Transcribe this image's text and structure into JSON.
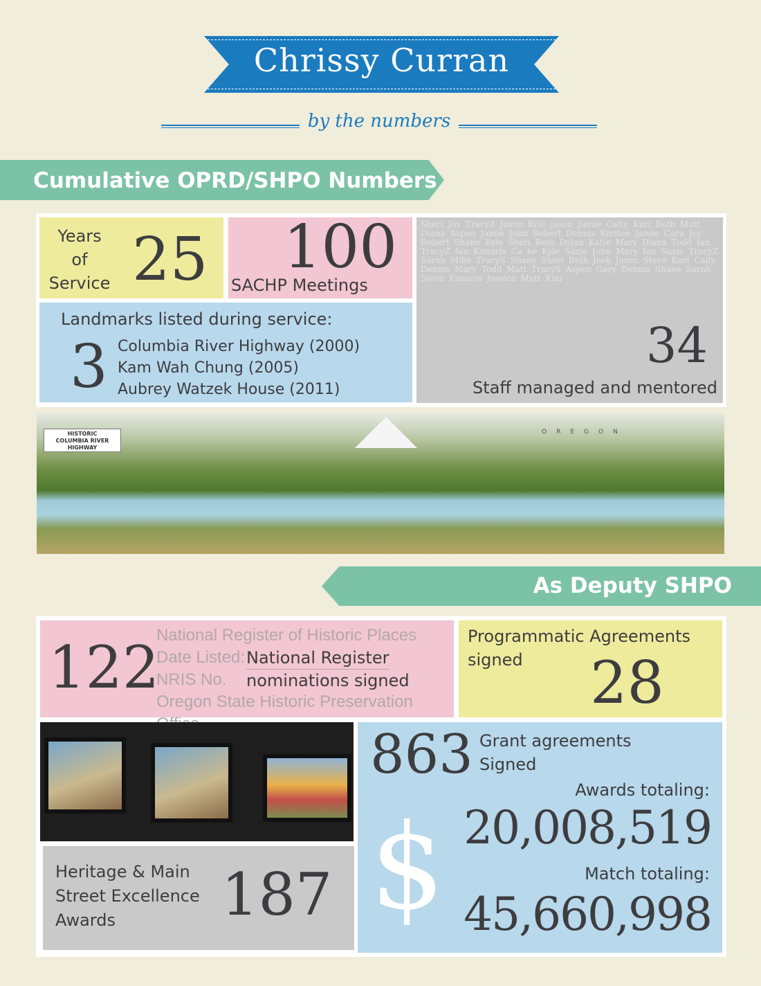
{
  "header": {
    "title": "Chrissy Curran",
    "subtitle": "by the numbers"
  },
  "section1": {
    "heading": "Cumulative OPRD/SHPO Numbers",
    "years": {
      "label_lines": [
        "Years",
        "of",
        "Service"
      ],
      "value": "25"
    },
    "sachp": {
      "value": "100",
      "label": "SACHP Meetings"
    },
    "landmarks": {
      "heading": "Landmarks listed during service:",
      "value": "3",
      "items": [
        "Columbia River Highway (2000)",
        "Kam Wah Chung (2005)",
        "Aubrey Watzek House (2011)"
      ]
    },
    "staff": {
      "value": "34",
      "label": "Staff managed and mentored",
      "names": "Sheri Joy TracyZ Jason Kyle Jason Jamie Caity Kuri Beth Matt Diana Aspen Jamie John Robert Dennis Kirsten Jamie Cara Joy Robert Shane Kyle Sheri Beth Dylan Katie Mary Diana Todd Ian TracyZ Ian Kimarie Ca ke Kyle Suzie John Mary Ian Suzie TracyZ Sarah Mike TracyS Shane Sheri Beth Josh Jason Steve Kuri Caity Dennis Mary Todd Matt TracyS Aspen Gary Dennis Shane Sarah Steve Kimarie Jessica Matt Kim"
    }
  },
  "map": {
    "logo_lines": [
      "HISTORIC",
      "COLUMBIA RIVER",
      "HIGHWAY"
    ],
    "region_label": "OREGON"
  },
  "section2": {
    "heading": "As Deputy SHPO",
    "nominations": {
      "value": "122",
      "ghost_lines": [
        "National Register of Historic Places",
        "Date Listed:",
        "NRIS No.",
        "Oregon State Historic Preservation Office"
      ],
      "label_lines": [
        "National Register",
        "nominations signed"
      ]
    },
    "agreements": {
      "label_lines": [
        "Programmatic Agreements",
        "signed"
      ],
      "value": "28"
    },
    "grants": {
      "value": "863",
      "label_lines": [
        "Grant agreements",
        "Signed"
      ],
      "awards_label": "Awards totaling:",
      "awards_value": "20,008,519",
      "match_label": "Match totaling:",
      "match_value": "45,660,998",
      "currency_symbol": "$"
    },
    "heritage": {
      "label_lines": [
        "Heritage & Main",
        "Street Excellence",
        "Awards"
      ],
      "value": "187"
    }
  },
  "colors": {
    "background": "#f1eddb",
    "ribbon_blue": "#1a7bbf",
    "band_green": "#7cc2a6",
    "yellow": "#eeeb9d",
    "pink": "#f2c6d2",
    "blue": "#b8d8ec",
    "gray": "#c9c9c9"
  }
}
